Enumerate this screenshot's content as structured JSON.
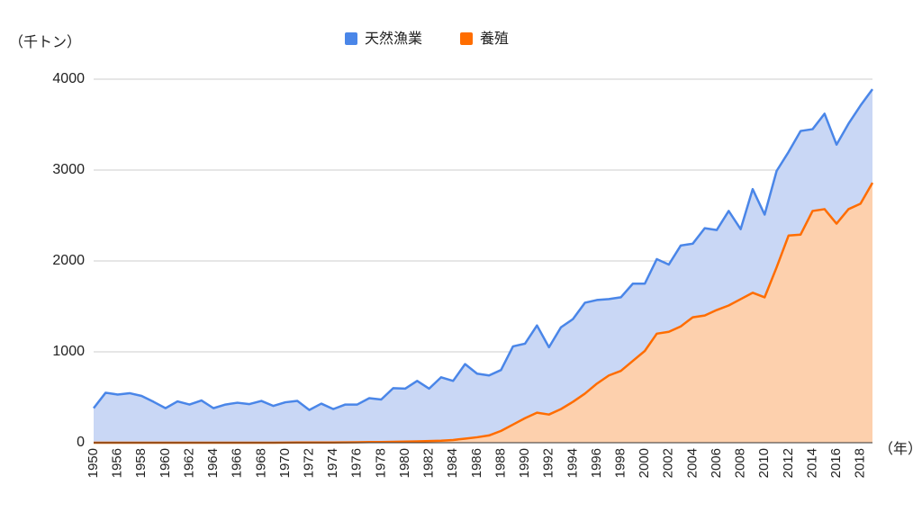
{
  "chart_data": {
    "type": "stacked_area",
    "y_axis_label": "（千トン）",
    "x_axis_label": "（年）",
    "categories": [
      "1950",
      null,
      "1956",
      null,
      "1958",
      null,
      "1960",
      null,
      "1962",
      null,
      "1964",
      null,
      "1966",
      null,
      "1968",
      null,
      "1970",
      null,
      "1972",
      null,
      "1974",
      null,
      "1976",
      null,
      "1978",
      null,
      "1980",
      null,
      "1982",
      null,
      "1984",
      null,
      "1986",
      null,
      "1988",
      null,
      "1990",
      null,
      "1992",
      null,
      "1994",
      null,
      "1996",
      null,
      "1998",
      null,
      "2000",
      null,
      "2002",
      null,
      "2004",
      null,
      "2006",
      null,
      "2008",
      null,
      "2010",
      null,
      "2012",
      null,
      "2014",
      null,
      "2016",
      null,
      "2018",
      null
    ],
    "series": [
      {
        "name": "天然漁業",
        "color": "#4a86e8",
        "fill": "#c9d7f5",
        "values": [
          380,
          550,
          530,
          545,
          515,
          450,
          380,
          455,
          420,
          465,
          380,
          420,
          440,
          425,
          460,
          405,
          444,
          458,
          358,
          427,
          367,
          416,
          415,
          483,
          467,
          590,
          583,
          665,
          577,
          698,
          650,
          820,
          700,
          660,
          670,
          860,
          820,
          960,
          740,
          900,
          910,
          1000,
          920,
          840,
          810,
          850,
          740,
          820,
          740,
          890,
          810,
          960,
          880,
          1040,
          770,
          1140,
          910,
          1060,
          920,
          1140,
          900,
          1050,
          870,
          940,
          1080,
          1030
        ]
      },
      {
        "name": "養殖",
        "color": "#ff6d00",
        "fill": "#fdd0ad",
        "values": [
          0,
          0,
          0,
          0,
          0,
          0,
          0,
          0,
          0,
          0,
          0,
          0,
          0,
          0,
          0,
          0,
          1,
          2,
          2,
          3,
          3,
          4,
          5,
          7,
          8,
          10,
          12,
          15,
          18,
          22,
          30,
          45,
          60,
          80,
          130,
          200,
          270,
          330,
          310,
          370,
          450,
          540,
          650,
          740,
          790,
          900,
          1010,
          1200,
          1220,
          1280,
          1380,
          1400,
          1460,
          1510,
          1580,
          1650,
          1600,
          1930,
          2280,
          2290,
          2550,
          2570,
          2410,
          2570,
          2630,
          2860
        ]
      }
    ],
    "stack_order": [
      1,
      0
    ],
    "ylim": [
      0,
      4000
    ],
    "yticks": [
      0,
      1000,
      2000,
      3000,
      4000
    ],
    "grid": true,
    "legend": "top"
  }
}
